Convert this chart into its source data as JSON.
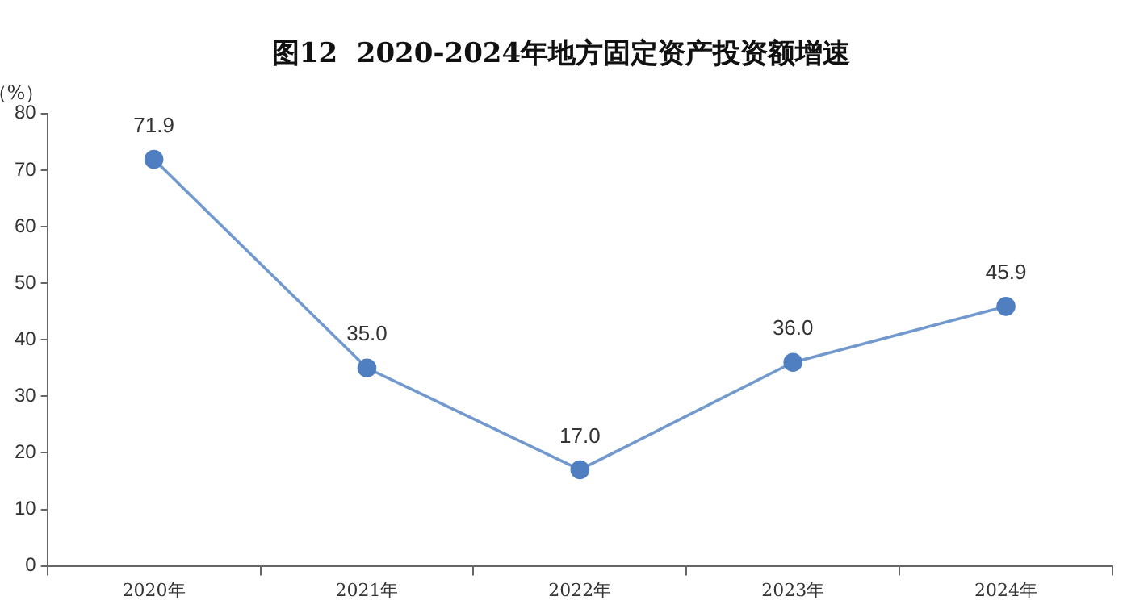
{
  "chart_data": {
    "type": "line",
    "title": "图12  2020-2024年地方固定资产投资额增速",
    "ylabel": "（%）",
    "categories": [
      "2020年",
      "2021年",
      "2022年",
      "2023年",
      "2024年"
    ],
    "series": [
      {
        "color": "#4f7fc0",
        "values": [
          71.9,
          35.0,
          17.0,
          36.0,
          45.9
        ],
        "value_labels": [
          "71.9",
          "35.0",
          "17.0",
          "36.0",
          "45.9"
        ]
      }
    ],
    "ylim": [
      0,
      80
    ],
    "yticks": [
      0,
      10,
      20,
      30,
      40,
      50,
      60,
      70,
      80
    ],
    "grid": false,
    "legend": false,
    "marker": "circle",
    "line_style": "solid"
  }
}
